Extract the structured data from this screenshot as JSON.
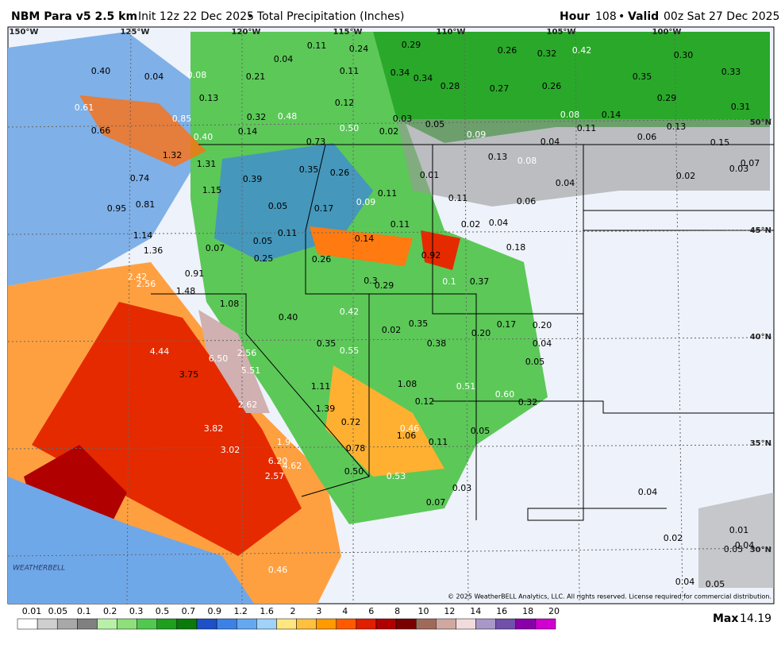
{
  "header": {
    "model": "NBM Para v5 2.5 km",
    "init": "Init 12z 22 Dec 2025",
    "separator": "•",
    "product": "Total Precipitation (Inches)",
    "hour_label": "Hour",
    "hour": "108",
    "valid_label": "Valid",
    "valid": "00z Sat 27 Dec 2025"
  },
  "map": {
    "longitudes": [
      "150°W",
      "125°W",
      "120°W",
      "115°W",
      "110°W",
      "105°W",
      "100°W"
    ],
    "latitudes": [
      "50°N",
      "45°N",
      "40°N",
      "35°N",
      "30°N"
    ],
    "credit": "© 2025 WeatherBELL Analytics, LLC. All rights reserved. License required for commercial distribution.",
    "logo": "WEATHERBELL",
    "point_values": [
      "0.11",
      "0.24",
      "0.29",
      "0.26",
      "0.32",
      "0.42",
      "0.30",
      "0.40",
      "0.04",
      "0.08",
      "0.04",
      "0.21",
      "0.11",
      "0.34",
      "0.34",
      "0.33",
      "0.35",
      "0.28",
      "0.27",
      "0.26",
      "0.13",
      "0.12",
      "0.29",
      "0.31",
      "0.61",
      "0.32",
      "0.48",
      "0.03",
      "0.05",
      "0.08",
      "0.14",
      "0.85",
      "0.50",
      "0.02",
      "0.11",
      "0.13",
      "0.66",
      "0.14",
      "0.40",
      "0.09",
      "0.06",
      "0.04",
      "0.15",
      "0.73",
      "1.32",
      "0.13",
      "0.08",
      "0.03",
      "0.07",
      "1.31",
      "0.35",
      "0.26",
      "0.01",
      "0.02",
      "0.74",
      "0.39",
      "0.04",
      "1.15",
      "0.11",
      "0.11",
      "0.95",
      "0.81",
      "0.05",
      "0.17",
      "0.09",
      "0.06",
      "0.11",
      "0.02",
      "0.04",
      "1.14",
      "0.11",
      "0.14",
      "0.05",
      "0.07",
      "0.18",
      "1.36",
      "0.25",
      "0.26",
      "0.92",
      "0.91",
      "2.42",
      "2.56",
      "0.3",
      "0.29",
      "0.37",
      "0.1",
      "1.48",
      "1.08",
      "0.40",
      "0.42",
      "0.20",
      "0.17",
      "0.02",
      "0.35",
      "0.20",
      "0.04",
      "0.35",
      "0.55",
      "0.38",
      "2.56",
      "4.44",
      "6.50",
      "5.51",
      "3.75",
      "0.05",
      "1.11",
      "1.08",
      "0.51",
      "0.60",
      "0.12",
      "0.32",
      "2.62",
      "1.39",
      "0.72",
      "0.46",
      "3.82",
      "1.06",
      "0.05",
      "1.94",
      "0.11",
      "0.78",
      "3.02",
      "6.20",
      "4.62",
      "2.57",
      "0.50",
      "0.53",
      "0.03",
      "0.04",
      "0.07",
      "0.02",
      "0.01",
      "0.04",
      "0.05",
      "0.46",
      "0.04",
      "0.05"
    ]
  },
  "legend": {
    "labels": [
      "0.01",
      "0.05",
      "0.1",
      "0.2",
      "0.3",
      "0.5",
      "0.7",
      "0.9",
      "1.2",
      "1.6",
      "2",
      "3",
      "4",
      "6",
      "8",
      "10",
      "12",
      "14",
      "16",
      "18",
      "20"
    ],
    "colors": [
      "#ffffff",
      "#cfcfcf",
      "#a8a8a8",
      "#808080",
      "#b8f0a8",
      "#8ee07a",
      "#52c850",
      "#1ea01e",
      "#0a7a0a",
      "#1e50c8",
      "#3c82e6",
      "#64a8f0",
      "#a0d2fa",
      "#ffe680",
      "#ffc040",
      "#ff9a00",
      "#ff5a00",
      "#e01e00",
      "#b00000",
      "#7a0000",
      "#a06a5a",
      "#d0a8a0",
      "#f0dcdc",
      "#a898c8",
      "#7050a8",
      "#8a00a8",
      "#d000d0"
    ],
    "max_label": "Max",
    "max_value": "14.19"
  }
}
